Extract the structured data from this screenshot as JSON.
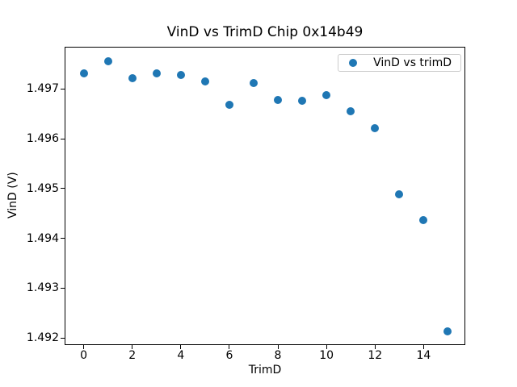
{
  "chart_data": {
    "type": "scatter",
    "title": "VinD vs TrimD Chip 0x14b49",
    "xlabel": "TrimD",
    "ylabel": "VinD (V)",
    "legend_position": "upper right",
    "grid": false,
    "background_color": "#ffffff",
    "spine_color": "#000000",
    "legend": [
      {
        "label": "VinD vs trimD",
        "marker": "circle",
        "marker_color": "#1f77b4"
      }
    ],
    "series": [
      {
        "name": "VinD vs trimD",
        "color": "#1f77b4",
        "marker": "circle",
        "x": [
          0,
          1,
          2,
          3,
          4,
          5,
          6,
          7,
          8,
          9,
          10,
          11,
          12,
          13,
          14,
          15
        ],
        "y": [
          1.49731,
          1.49756,
          1.49722,
          1.49732,
          1.49728,
          1.49716,
          1.49669,
          1.49712,
          1.49678,
          1.49676,
          1.49687,
          1.49656,
          1.49621,
          1.49489,
          1.49437,
          1.49213
        ]
      }
    ],
    "xlim": [
      -0.75,
      15.75
    ],
    "ylim": [
      1.49185,
      1.49784
    ],
    "xticks": [
      0,
      2,
      4,
      6,
      8,
      10,
      12,
      14
    ],
    "xtick_labels": [
      "0",
      "2",
      "4",
      "6",
      "8",
      "10",
      "12",
      "14"
    ],
    "yticks": [
      1.492,
      1.493,
      1.494,
      1.495,
      1.496,
      1.497
    ],
    "ytick_labels": [
      "1.492",
      "1.493",
      "1.494",
      "1.495",
      "1.496",
      "1.497"
    ]
  }
}
